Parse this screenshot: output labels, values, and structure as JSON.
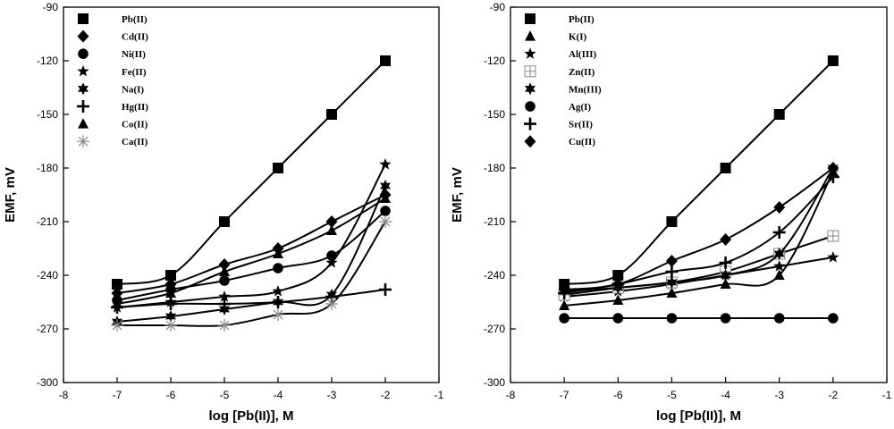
{
  "chart_data": [
    {
      "type": "line",
      "xlabel": "log [Pb(II)], M",
      "ylabel": "EMF, mV",
      "xlim": [
        -8,
        -1
      ],
      "ylim": [
        -300,
        -90
      ],
      "xticks": [
        -8,
        -7,
        -6,
        -5,
        -4,
        -3,
        -2,
        -1
      ],
      "yticks": [
        -90,
        -120,
        -150,
        -180,
        -210,
        -240,
        -270,
        -300
      ],
      "x": [
        -7,
        -6,
        -5,
        -4,
        -3,
        -2
      ],
      "legend_position": "top-left",
      "series": [
        {
          "name": "Pb(II)",
          "marker": "square",
          "values": [
            -245,
            -240,
            -210,
            -180,
            -150,
            -120
          ]
        },
        {
          "name": "Cd(II)",
          "marker": "diamond",
          "values": [
            -250,
            -245,
            -234,
            -225,
            -210,
            -195
          ]
        },
        {
          "name": "Ni(II)",
          "marker": "circle",
          "values": [
            -254,
            -248,
            -243,
            -236,
            -229,
            -204
          ]
        },
        {
          "name": "Fe(II)",
          "marker": "star5",
          "values": [
            -258,
            -255,
            -252,
            -249,
            -233,
            -178
          ]
        },
        {
          "name": "Na(I)",
          "marker": "star6",
          "values": [
            -266,
            -263,
            -259,
            -255,
            -251,
            -190
          ]
        },
        {
          "name": "Hg(II)",
          "marker": "plus",
          "values": [
            -258,
            -256,
            -256,
            -255,
            -252,
            -248
          ]
        },
        {
          "name": "Co(II)",
          "marker": "triangle",
          "values": [
            -256,
            -250,
            -238,
            -228,
            -215,
            -197
          ]
        },
        {
          "name": "Ca(II)",
          "marker": "asterisk",
          "values": [
            -268,
            -268,
            -268,
            -262,
            -256,
            -210
          ]
        }
      ]
    },
    {
      "type": "line",
      "xlabel": "log [Pb(II)], M",
      "ylabel": "EMF, mV",
      "xlim": [
        -8,
        -1
      ],
      "ylim": [
        -300,
        -90
      ],
      "xticks": [
        -8,
        -7,
        -6,
        -5,
        -4,
        -3,
        -2,
        -1
      ],
      "yticks": [
        -90,
        -120,
        -150,
        -180,
        -210,
        -240,
        -270,
        -300
      ],
      "x": [
        -7,
        -6,
        -5,
        -4,
        -3,
        -2
      ],
      "legend_position": "top-left",
      "series": [
        {
          "name": "Pb(II)",
          "marker": "square",
          "values": [
            -245,
            -240,
            -210,
            -180,
            -150,
            -120
          ]
        },
        {
          "name": "K(I)",
          "marker": "triangle",
          "values": [
            -257,
            -254,
            -250,
            -245,
            -240,
            -182
          ]
        },
        {
          "name": "Al(III)",
          "marker": "star5",
          "values": [
            -252,
            -249,
            -245,
            -240,
            -235,
            -230
          ]
        },
        {
          "name": "Zn(II)",
          "marker": "gridsquare",
          "values": [
            -251,
            -247,
            -244,
            -238,
            -228,
            -218
          ]
        },
        {
          "name": "Mn(III)",
          "marker": "star6",
          "values": [
            -249,
            -247,
            -244,
            -240,
            -228,
            -180
          ]
        },
        {
          "name": "Ag(I)",
          "marker": "circle",
          "values": [
            -264,
            -264,
            -264,
            -264,
            -264,
            -264
          ]
        },
        {
          "name": "Sr(II)",
          "marker": "plus",
          "values": [
            -250,
            -245,
            -238,
            -233,
            -216,
            -185
          ]
        },
        {
          "name": "Cu(II)",
          "marker": "diamond",
          "values": [
            -248,
            -245,
            -232,
            -220,
            -202,
            -180
          ]
        }
      ]
    }
  ]
}
